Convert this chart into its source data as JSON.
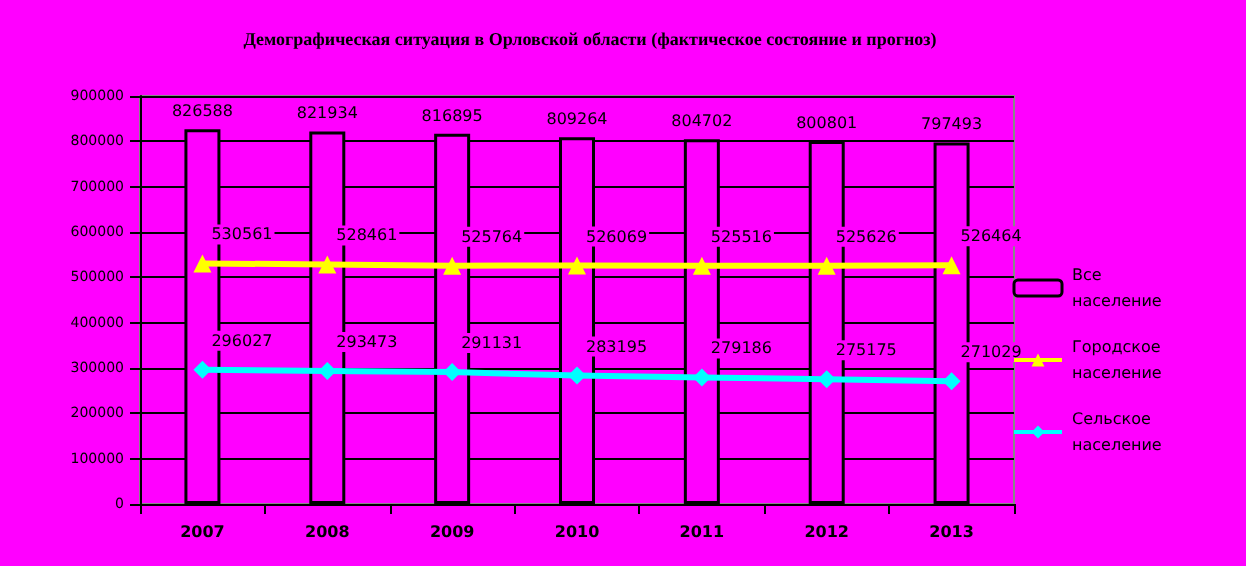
{
  "chart_data": {
    "type": "bar",
    "title": "Демографическая ситуация в Орловской области (фактическое состояние и прогноз)",
    "categories": [
      "2007",
      "2008",
      "2009",
      "2010",
      "2011",
      "2012",
      "2013"
    ],
    "series": [
      {
        "name": "Все население",
        "color": "#ff00ff",
        "values": [
          826588,
          821934,
          816895,
          809264,
          804702,
          800801,
          797493
        ]
      },
      {
        "name": "Городское население",
        "type": "line",
        "color": "#ffff00",
        "marker": "triangle",
        "values": [
          530561,
          528461,
          525764,
          526069,
          525516,
          525626,
          526464
        ]
      },
      {
        "name": "Сельское население",
        "type": "line",
        "color": "#00ffff",
        "marker": "diamond",
        "values": [
          296027,
          293473,
          291131,
          283195,
          279186,
          275175,
          271029
        ]
      }
    ],
    "ylim": [
      0,
      900000
    ],
    "yticks": [
      0,
      100000,
      200000,
      300000,
      400000,
      500000,
      600000,
      700000,
      800000,
      900000
    ],
    "grid": "y",
    "legend": "right",
    "data_labels": true
  }
}
